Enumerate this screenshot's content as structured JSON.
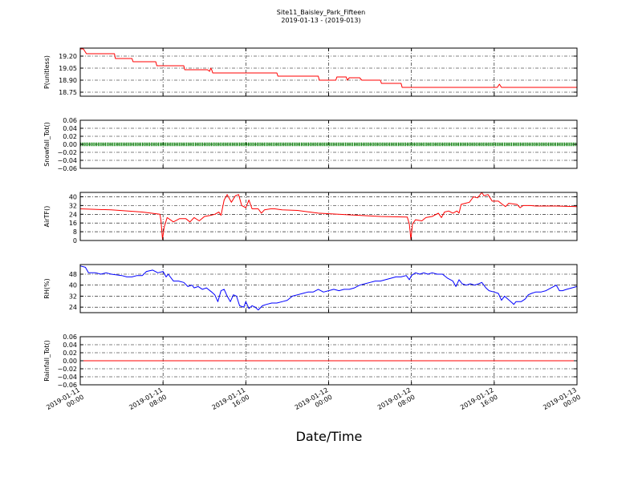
{
  "title": "Site11_Baisley_Park_Fifteen",
  "subtitle": "2019-01-13 - (2019-013)",
  "xlabel": "Date/Time",
  "colors": {
    "red": "#ff0000",
    "green": "#008000",
    "blue": "#0000ff",
    "grid": "#000000"
  },
  "chart_data": [
    {
      "type": "line",
      "ylabel": "P(unitless)",
      "color": "#ff0000",
      "ylim": [
        18.7,
        19.3
      ],
      "yticks": [
        18.75,
        18.9,
        19.05,
        19.2
      ],
      "ytick_labels": [
        "18.75",
        "18.90",
        "19.05",
        "19.20"
      ],
      "xlim": [
        0,
        48
      ],
      "grid": true,
      "points": [
        [
          0,
          19.29
        ],
        [
          0.3,
          19.29
        ],
        [
          0.6,
          19.23
        ],
        [
          3.3,
          19.23
        ],
        [
          3.4,
          19.17
        ],
        [
          5,
          19.17
        ],
        [
          5.1,
          19.13
        ],
        [
          7.3,
          19.13
        ],
        [
          7.4,
          19.08
        ],
        [
          10,
          19.08
        ],
        [
          10.1,
          19.03
        ],
        [
          12.3,
          19.03
        ],
        [
          12.5,
          19.01
        ],
        [
          12.6,
          19.05
        ],
        [
          12.7,
          19.03
        ],
        [
          12.8,
          18.99
        ],
        [
          19,
          18.99
        ],
        [
          19.1,
          18.95
        ],
        [
          23,
          18.95
        ],
        [
          23.1,
          18.9
        ],
        [
          24.7,
          18.9
        ],
        [
          24.8,
          18.94
        ],
        [
          25.7,
          18.94
        ],
        [
          25.8,
          18.9
        ],
        [
          26,
          18.93
        ],
        [
          27,
          18.93
        ],
        [
          27.2,
          18.9
        ],
        [
          29,
          18.9
        ],
        [
          29.1,
          18.86
        ],
        [
          31,
          18.86
        ],
        [
          31.1,
          18.81
        ],
        [
          40.3,
          18.81
        ],
        [
          40.5,
          18.85
        ],
        [
          40.7,
          18.81
        ],
        [
          48,
          18.81
        ]
      ]
    },
    {
      "type": "line",
      "ylabel": "Snowfall_Tot()",
      "color": "#008000",
      "style": "markers",
      "ylim": [
        -0.06,
        0.06
      ],
      "yticks": [
        -0.06,
        -0.04,
        -0.02,
        0.0,
        0.02,
        0.04,
        0.06
      ],
      "ytick_labels": [
        "−0.06",
        "−0.04",
        "−0.02",
        "0.00",
        "0.02",
        "0.04",
        "0.06"
      ],
      "xlim": [
        0,
        48
      ],
      "grid": true,
      "points": [
        [
          0,
          0
        ],
        [
          48,
          0
        ]
      ]
    },
    {
      "type": "line",
      "ylabel": "AirTF()",
      "color": "#ff0000",
      "ylim": [
        0,
        44
      ],
      "yticks": [
        0,
        8,
        16,
        24,
        32,
        40
      ],
      "ytick_labels": [
        "0",
        "8",
        "16",
        "24",
        "32",
        "40"
      ],
      "xlim": [
        0,
        48
      ],
      "grid": true,
      "points": [
        [
          0,
          29
        ],
        [
          3,
          28
        ],
        [
          6,
          26
        ],
        [
          7.7,
          24
        ],
        [
          7.8,
          18
        ],
        [
          7.95,
          1
        ],
        [
          8.1,
          12
        ],
        [
          8.4,
          21
        ],
        [
          9,
          17
        ],
        [
          9.6,
          20
        ],
        [
          10.2,
          20
        ],
        [
          10.6,
          17
        ],
        [
          11,
          21
        ],
        [
          11.5,
          18
        ],
        [
          12,
          22
        ],
        [
          12.6,
          23
        ],
        [
          13,
          24
        ],
        [
          13.4,
          26
        ],
        [
          13.6,
          23
        ],
        [
          13.9,
          37
        ],
        [
          14.2,
          42
        ],
        [
          14.6,
          35
        ],
        [
          15,
          41
        ],
        [
          15.3,
          42
        ],
        [
          15.6,
          32
        ],
        [
          16,
          30
        ],
        [
          16.3,
          37
        ],
        [
          16.6,
          29
        ],
        [
          17.2,
          29
        ],
        [
          17.5,
          25
        ],
        [
          17.8,
          28
        ],
        [
          18.4,
          29
        ],
        [
          18.8,
          29
        ],
        [
          19.5,
          28
        ],
        [
          21,
          27.5
        ],
        [
          23,
          25
        ],
        [
          26,
          23.5
        ],
        [
          29,
          22
        ],
        [
          31.6,
          21.5
        ],
        [
          31.8,
          15
        ],
        [
          31.95,
          1
        ],
        [
          32.1,
          15
        ],
        [
          32.4,
          19
        ],
        [
          33,
          18
        ],
        [
          33.4,
          21
        ],
        [
          34,
          22
        ],
        [
          34.6,
          25
        ],
        [
          34.9,
          21
        ],
        [
          35.2,
          26
        ],
        [
          35.6,
          27
        ],
        [
          36,
          25
        ],
        [
          36.4,
          27
        ],
        [
          36.6,
          25
        ],
        [
          36.8,
          33
        ],
        [
          37.2,
          34
        ],
        [
          37.6,
          35
        ],
        [
          38,
          40
        ],
        [
          38.4,
          39
        ],
        [
          38.8,
          44
        ],
        [
          39,
          41
        ],
        [
          39.4,
          42
        ],
        [
          39.8,
          36
        ],
        [
          40.4,
          36
        ],
        [
          40.8,
          33
        ],
        [
          41.1,
          31
        ],
        [
          41.4,
          34
        ],
        [
          42.2,
          33
        ],
        [
          42.5,
          30
        ],
        [
          42.8,
          32
        ],
        [
          43.5,
          32
        ],
        [
          44,
          31.5
        ],
        [
          46,
          31.5
        ],
        [
          48,
          31
        ]
      ]
    },
    {
      "type": "line",
      "ylabel": "RH(%)",
      "color": "#0000ff",
      "ylim": [
        20,
        55
      ],
      "yticks": [
        24,
        32,
        40,
        48
      ],
      "ytick_labels": [
        "24",
        "32",
        "40",
        "48"
      ],
      "xlim": [
        0,
        48
      ],
      "grid": true,
      "points": [
        [
          0,
          54
        ],
        [
          0.5,
          53
        ],
        [
          0.8,
          49
        ],
        [
          1.5,
          49
        ],
        [
          2,
          48
        ],
        [
          2.5,
          49
        ],
        [
          3,
          48
        ],
        [
          4,
          47
        ],
        [
          4.5,
          46
        ],
        [
          5,
          46
        ],
        [
          5.5,
          47
        ],
        [
          6,
          47
        ],
        [
          6.4,
          50
        ],
        [
          7,
          51
        ],
        [
          7.5,
          49
        ],
        [
          8,
          50
        ],
        [
          8.3,
          46
        ],
        [
          8.5,
          48
        ],
        [
          9,
          43
        ],
        [
          9.5,
          43
        ],
        [
          10,
          42
        ],
        [
          10.4,
          39
        ],
        [
          10.8,
          40
        ],
        [
          11,
          38
        ],
        [
          11.4,
          39
        ],
        [
          11.8,
          37
        ],
        [
          12.2,
          38
        ],
        [
          12.7,
          35
        ],
        [
          13,
          33
        ],
        [
          13.3,
          28
        ],
        [
          13.6,
          36
        ],
        [
          13.9,
          37
        ],
        [
          14.2,
          32
        ],
        [
          14.5,
          28
        ],
        [
          14.8,
          33
        ],
        [
          15.1,
          32
        ],
        [
          15.4,
          25
        ],
        [
          15.8,
          24
        ],
        [
          16,
          28
        ],
        [
          16.3,
          23
        ],
        [
          16.6,
          25
        ],
        [
          16.9,
          24
        ],
        [
          17.2,
          22
        ],
        [
          17.6,
          25
        ],
        [
          18,
          26
        ],
        [
          18.5,
          27
        ],
        [
          19,
          27
        ],
        [
          19.5,
          28
        ],
        [
          20,
          29
        ],
        [
          20.5,
          32
        ],
        [
          21,
          33
        ],
        [
          21.5,
          34
        ],
        [
          22,
          35
        ],
        [
          22.5,
          35
        ],
        [
          23,
          37
        ],
        [
          23.5,
          35
        ],
        [
          24,
          36
        ],
        [
          24.5,
          37
        ],
        [
          25,
          36
        ],
        [
          25.5,
          37
        ],
        [
          26,
          37
        ],
        [
          26.5,
          38
        ],
        [
          27,
          40
        ],
        [
          27.5,
          41
        ],
        [
          28,
          42
        ],
        [
          28.5,
          43
        ],
        [
          29,
          43
        ],
        [
          29.5,
          44
        ],
        [
          30,
          45
        ],
        [
          30.5,
          46
        ],
        [
          31,
          46
        ],
        [
          31.5,
          47
        ],
        [
          31.8,
          44
        ],
        [
          32,
          47
        ],
        [
          32.4,
          49
        ],
        [
          32.8,
          48
        ],
        [
          33.2,
          49
        ],
        [
          33.6,
          48
        ],
        [
          34,
          49
        ],
        [
          34.5,
          48
        ],
        [
          35,
          48
        ],
        [
          35.5,
          45
        ],
        [
          36,
          43
        ],
        [
          36.3,
          39
        ],
        [
          36.6,
          44
        ],
        [
          36.9,
          41
        ],
        [
          37.3,
          40
        ],
        [
          37.7,
          41
        ],
        [
          38.1,
          40
        ],
        [
          38.5,
          41
        ],
        [
          38.8,
          42
        ],
        [
          39.2,
          38
        ],
        [
          39.5,
          36
        ],
        [
          40,
          35
        ],
        [
          40.4,
          34
        ],
        [
          40.7,
          29
        ],
        [
          41,
          32
        ],
        [
          41.3,
          30
        ],
        [
          41.6,
          28
        ],
        [
          41.9,
          26
        ],
        [
          42.1,
          28
        ],
        [
          42.6,
          28
        ],
        [
          43,
          30
        ],
        [
          43.3,
          33
        ],
        [
          43.6,
          34
        ],
        [
          44,
          35
        ],
        [
          44.5,
          35
        ],
        [
          45,
          36
        ],
        [
          45.5,
          38
        ],
        [
          46,
          40
        ],
        [
          46.3,
          36
        ],
        [
          46.6,
          36
        ],
        [
          47,
          37
        ],
        [
          47.5,
          38
        ],
        [
          48,
          39
        ]
      ]
    },
    {
      "type": "line",
      "ylabel": "Rainfall_Tot()",
      "color": "#ff0000",
      "ylim": [
        -0.06,
        0.06
      ],
      "yticks": [
        -0.06,
        -0.04,
        -0.02,
        0.0,
        0.02,
        0.04,
        0.06
      ],
      "ytick_labels": [
        "−0.06",
        "−0.04",
        "−0.02",
        "0.00",
        "0.02",
        "0.04",
        "0.06"
      ],
      "xlim": [
        0,
        48
      ],
      "grid": true,
      "points": [
        [
          0,
          0
        ],
        [
          48,
          0
        ]
      ]
    }
  ],
  "x_axis": {
    "ticks": [
      0,
      8,
      16,
      24,
      32,
      40,
      48
    ],
    "tick_labels": [
      [
        "2019-01-11",
        "00:00"
      ],
      [
        "2019-01-11",
        "08:00"
      ],
      [
        "2019-01-11",
        "16:00"
      ],
      [
        "2019-01-12",
        "00:00"
      ],
      [
        "2019-01-12",
        "08:00"
      ],
      [
        "2019-01-12",
        "16:00"
      ],
      [
        "2019-01-13",
        "00:00"
      ]
    ]
  }
}
